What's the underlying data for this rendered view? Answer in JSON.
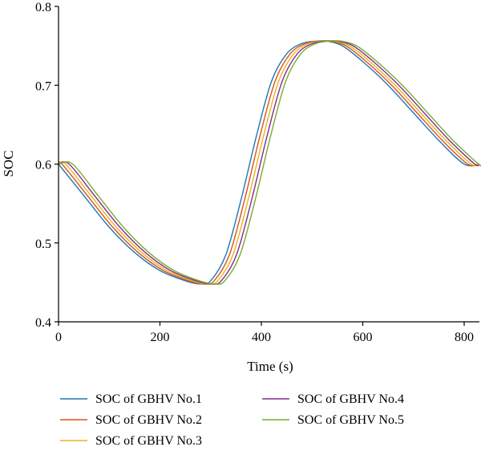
{
  "chart_data": {
    "type": "line",
    "title": "",
    "xlabel": "Time (s)",
    "ylabel": "SOC",
    "xlim": [
      0,
      830
    ],
    "ylim": [
      0.4,
      0.8
    ],
    "xticks": [
      0,
      200,
      400,
      600,
      800
    ],
    "xtick_labels": [
      "0",
      "200",
      "400",
      "600",
      "800"
    ],
    "yticks": [
      0.4,
      0.5,
      0.6,
      0.7,
      0.8
    ],
    "ytick_labels": [
      "0.4",
      "0.5",
      "0.6",
      "0.7",
      "0.8"
    ],
    "grid": false,
    "legend_position": "bottom",
    "series": [
      {
        "name": "SOC of GBHV No.1",
        "color": "#1f77b4",
        "x": [
          0,
          50,
          100,
          150,
          200,
          250,
          280,
          300,
          330,
          360,
          390,
          420,
          450,
          480,
          510,
          530,
          560,
          600,
          650,
          700,
          750,
          800,
          830
        ],
        "y": [
          0.6,
          0.56,
          0.52,
          0.488,
          0.465,
          0.452,
          0.448,
          0.452,
          0.485,
          0.555,
          0.635,
          0.705,
          0.74,
          0.753,
          0.756,
          0.756,
          0.75,
          0.73,
          0.7,
          0.665,
          0.63,
          0.6,
          0.6
        ]
      },
      {
        "name": "SOC of GBHV No.2",
        "color": "#d95319",
        "x": [
          0,
          7,
          57,
          107,
          157,
          207,
          257,
          287,
          307,
          337,
          367,
          397,
          427,
          457,
          487,
          517,
          537,
          567,
          607,
          657,
          707,
          757,
          807,
          830
        ],
        "y": [
          0.6,
          0.6,
          0.56,
          0.52,
          0.488,
          0.465,
          0.452,
          0.448,
          0.452,
          0.485,
          0.555,
          0.635,
          0.705,
          0.74,
          0.753,
          0.756,
          0.756,
          0.75,
          0.73,
          0.7,
          0.665,
          0.63,
          0.6,
          0.6
        ]
      },
      {
        "name": "SOC of GBHV No.3",
        "color": "#edb120",
        "x": [
          0,
          14,
          64,
          114,
          164,
          214,
          264,
          294,
          314,
          344,
          374,
          404,
          434,
          464,
          494,
          524,
          544,
          574,
          614,
          664,
          714,
          764,
          814,
          830
        ],
        "y": [
          0.6,
          0.6,
          0.56,
          0.52,
          0.488,
          0.465,
          0.452,
          0.448,
          0.452,
          0.485,
          0.555,
          0.635,
          0.705,
          0.74,
          0.753,
          0.756,
          0.756,
          0.75,
          0.73,
          0.7,
          0.665,
          0.63,
          0.6,
          0.6
        ]
      },
      {
        "name": "SOC of GBHV No.4",
        "color": "#7e2f8e",
        "x": [
          0,
          21,
          71,
          121,
          171,
          221,
          271,
          301,
          321,
          351,
          381,
          411,
          441,
          471,
          501,
          531,
          551,
          581,
          621,
          671,
          721,
          771,
          821,
          830
        ],
        "y": [
          0.6,
          0.6,
          0.56,
          0.52,
          0.488,
          0.465,
          0.452,
          0.448,
          0.452,
          0.485,
          0.555,
          0.635,
          0.705,
          0.74,
          0.753,
          0.756,
          0.756,
          0.75,
          0.73,
          0.7,
          0.665,
          0.63,
          0.6,
          0.6
        ]
      },
      {
        "name": "SOC of GBHV No.5",
        "color": "#77ac30",
        "x": [
          0,
          28,
          78,
          128,
          178,
          228,
          278,
          308,
          328,
          358,
          388,
          418,
          448,
          478,
          508,
          538,
          558,
          588,
          628,
          678,
          728,
          778,
          828,
          830
        ],
        "y": [
          0.6,
          0.6,
          0.56,
          0.52,
          0.488,
          0.465,
          0.452,
          0.448,
          0.452,
          0.485,
          0.555,
          0.635,
          0.705,
          0.74,
          0.753,
          0.756,
          0.756,
          0.75,
          0.73,
          0.7,
          0.665,
          0.63,
          0.6,
          0.6
        ]
      }
    ]
  }
}
